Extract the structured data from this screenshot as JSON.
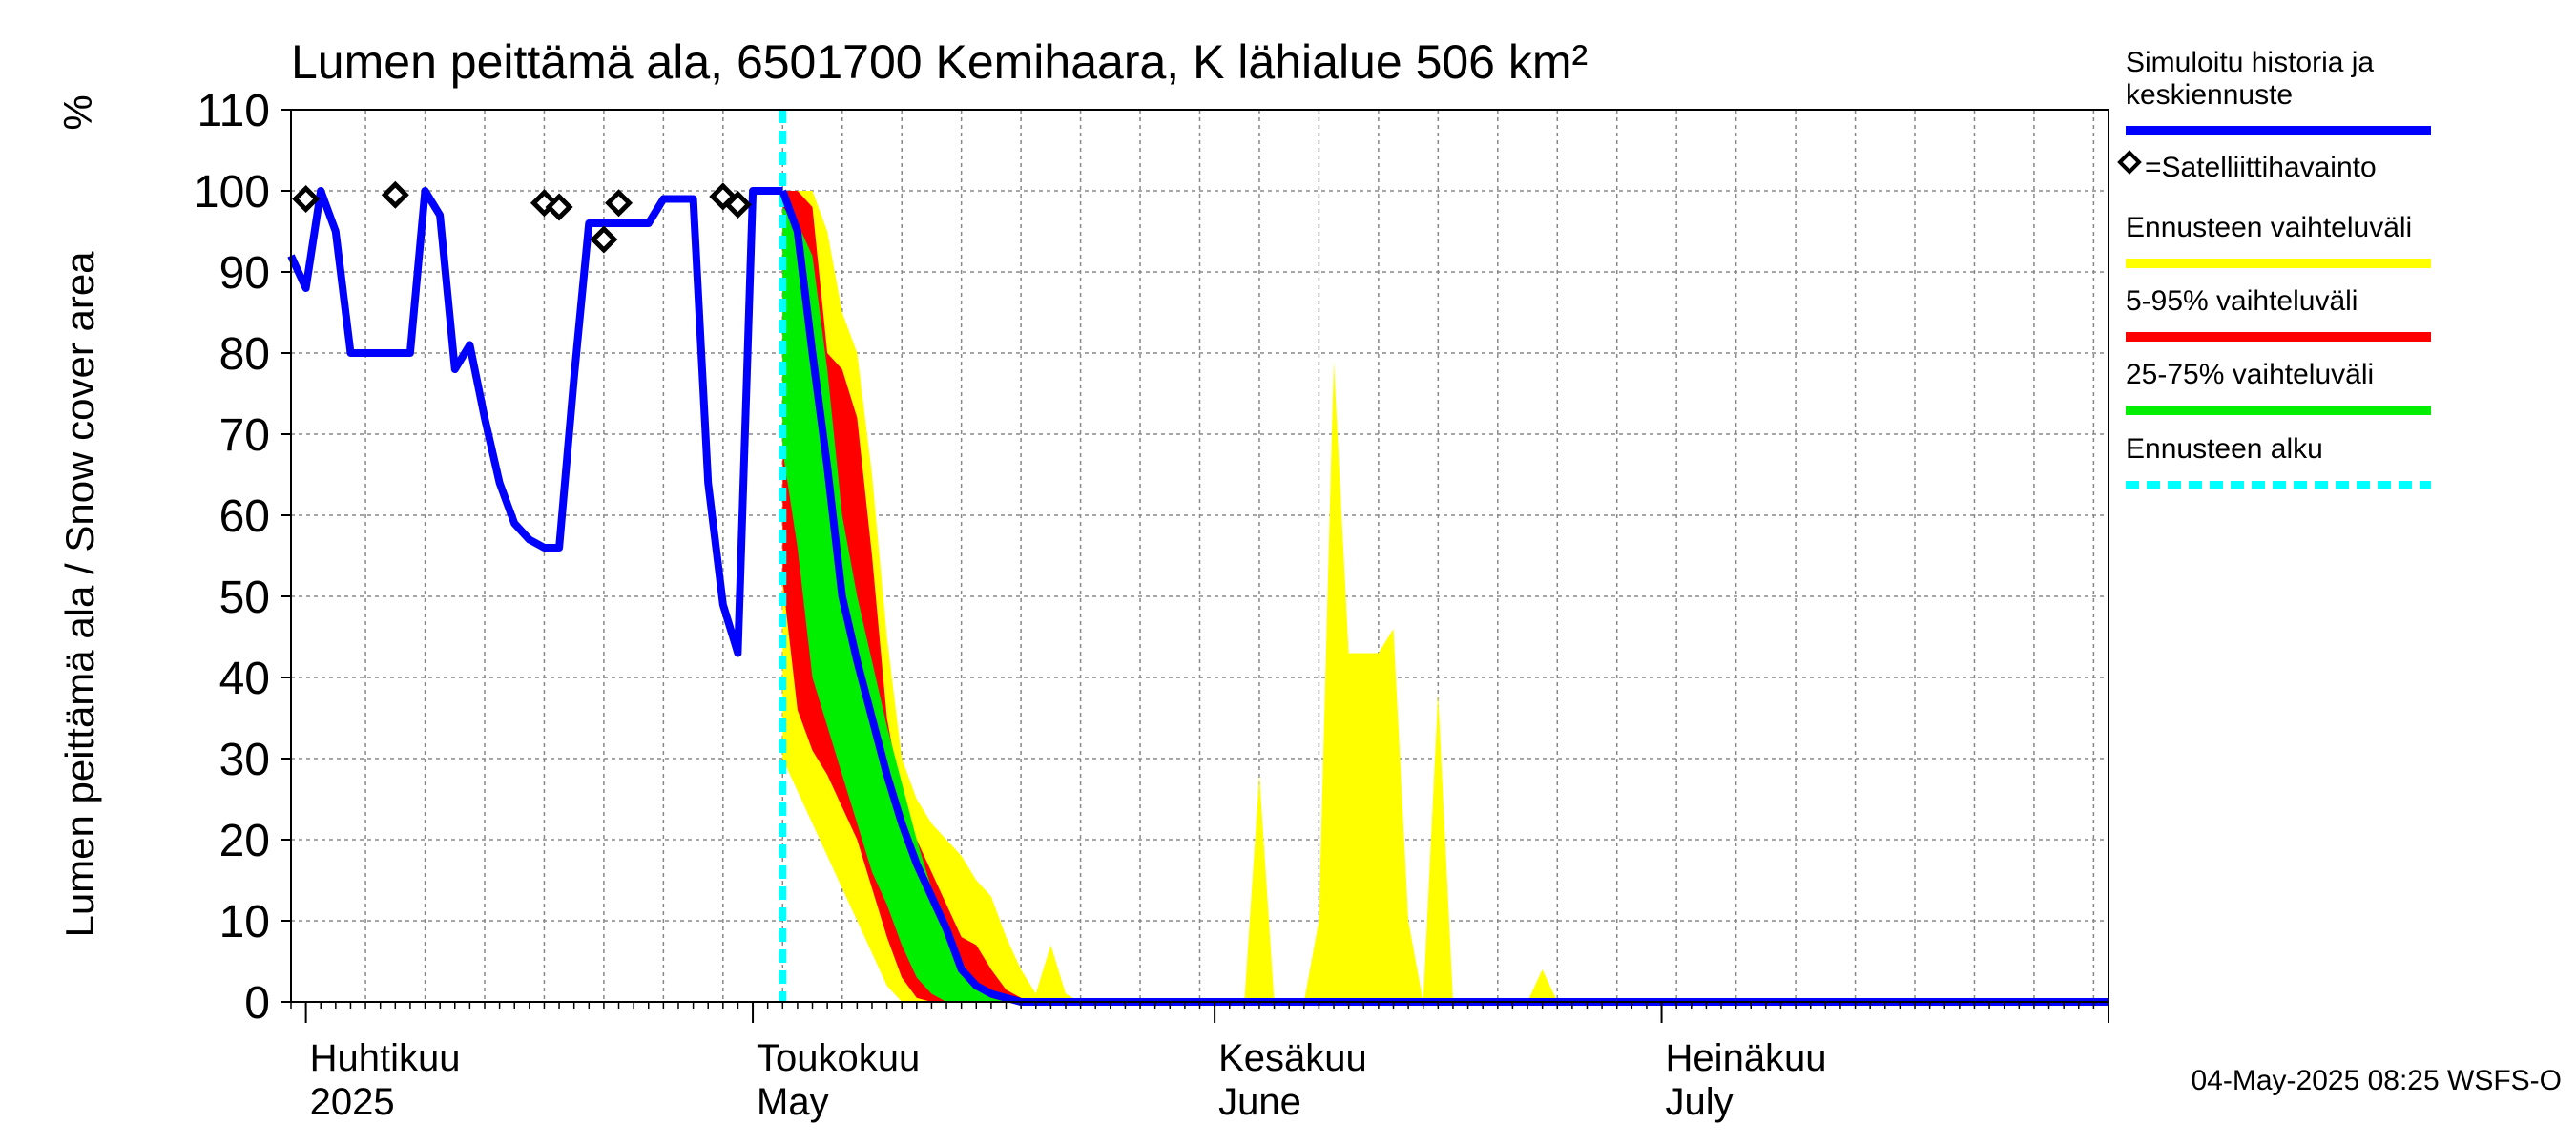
{
  "chart_data": {
    "type": "area",
    "title": "Lumen peittämä ala, 6501700 Kemihaara, K lähialue 506 km²",
    "ylabel": "Lumen peittämä ala / Snow cover area",
    "yunit": "%",
    "ylim": [
      0,
      110
    ],
    "yticks": [
      0,
      10,
      20,
      30,
      40,
      50,
      60,
      70,
      80,
      90,
      100,
      110
    ],
    "xlim": [
      "2025-03-31",
      "2025-07-31"
    ],
    "grid": true,
    "x_month_labels": [
      {
        "date": "2025-04-01",
        "fi": "Huhtikuu",
        "en": "2025"
      },
      {
        "date": "2025-05-01",
        "fi": "Toukokuu",
        "en": "May"
      },
      {
        "date": "2025-06-01",
        "fi": "Kesäkuu",
        "en": "June"
      },
      {
        "date": "2025-07-01",
        "fi": "Heinäkuu",
        "en": "July"
      }
    ],
    "legend": {
      "placement": "right",
      "entries": [
        {
          "id": "sim",
          "lines": [
            "Simuloitu historia ja",
            "keskiennuste"
          ],
          "color": "#0000ff",
          "style": "solid"
        },
        {
          "id": "sat",
          "lines": [
            "=Satelliittihavainto"
          ],
          "color": "#000000",
          "style": "diamond"
        },
        {
          "id": "full",
          "lines": [
            "Ennusteen vaihteluväli"
          ],
          "color": "#ffff00",
          "style": "solid"
        },
        {
          "id": "p595",
          "lines": [
            "5-95% vaihteluväli"
          ],
          "color": "#ff0000",
          "style": "solid"
        },
        {
          "id": "p2575",
          "lines": [
            "25-75% vaihteluväli"
          ],
          "color": "#00ee00",
          "style": "solid"
        },
        {
          "id": "start",
          "lines": [
            "Ennusteen alku"
          ],
          "color": "#00ffff",
          "style": "dashed"
        }
      ]
    },
    "forecast_start": "2025-05-03",
    "footer": "04-May-2025 08:25 WSFS-O",
    "series": {
      "simulated_history": [
        [
          "2025-03-31",
          92
        ],
        [
          "2025-04-01",
          88
        ],
        [
          "2025-04-02",
          100
        ],
        [
          "2025-04-03",
          95
        ],
        [
          "2025-04-04",
          80
        ],
        [
          "2025-04-05",
          80
        ],
        [
          "2025-04-06",
          80
        ],
        [
          "2025-04-07",
          80
        ],
        [
          "2025-04-08",
          80
        ],
        [
          "2025-04-09",
          100
        ],
        [
          "2025-04-10",
          97
        ],
        [
          "2025-04-11",
          78
        ],
        [
          "2025-04-12",
          81
        ],
        [
          "2025-04-13",
          72
        ],
        [
          "2025-04-14",
          64
        ],
        [
          "2025-04-15",
          59
        ],
        [
          "2025-04-16",
          57
        ],
        [
          "2025-04-17",
          56
        ],
        [
          "2025-04-18",
          56
        ],
        [
          "2025-04-19",
          77
        ],
        [
          "2025-04-20",
          96
        ],
        [
          "2025-04-21",
          96
        ],
        [
          "2025-04-22",
          96
        ],
        [
          "2025-04-23",
          96
        ],
        [
          "2025-04-24",
          96
        ],
        [
          "2025-04-25",
          99
        ],
        [
          "2025-04-26",
          99
        ],
        [
          "2025-04-27",
          99
        ],
        [
          "2025-04-28",
          64
        ],
        [
          "2025-04-29",
          49
        ],
        [
          "2025-04-30",
          43
        ],
        [
          "2025-05-01",
          100
        ],
        [
          "2025-05-02",
          100
        ],
        [
          "2025-05-03",
          100
        ]
      ],
      "median_forecast": [
        [
          "2025-05-03",
          100
        ],
        [
          "2025-05-04",
          95
        ],
        [
          "2025-05-05",
          80
        ],
        [
          "2025-05-06",
          66
        ],
        [
          "2025-05-07",
          50
        ],
        [
          "2025-05-08",
          42
        ],
        [
          "2025-05-09",
          35
        ],
        [
          "2025-05-10",
          28
        ],
        [
          "2025-05-11",
          22
        ],
        [
          "2025-05-12",
          17
        ],
        [
          "2025-05-13",
          13
        ],
        [
          "2025-05-14",
          9
        ],
        [
          "2025-05-15",
          4
        ],
        [
          "2025-05-16",
          2
        ],
        [
          "2025-05-17",
          1
        ],
        [
          "2025-05-18",
          0.5
        ],
        [
          "2025-05-19",
          0
        ],
        [
          "2025-07-31",
          0
        ]
      ],
      "satellite_observations": [
        [
          "2025-04-01",
          99
        ],
        [
          "2025-04-07",
          99.5
        ],
        [
          "2025-04-17",
          98.5
        ],
        [
          "2025-04-18",
          98
        ],
        [
          "2025-04-21",
          94
        ],
        [
          "2025-04-22",
          98.5
        ],
        [
          "2025-04-29",
          99.3
        ],
        [
          "2025-04-30",
          98.3
        ]
      ],
      "band_full": {
        "dates": [
          "2025-05-03",
          "2025-05-04",
          "2025-05-05",
          "2025-05-06",
          "2025-05-07",
          "2025-05-08",
          "2025-05-09",
          "2025-05-10",
          "2025-05-11",
          "2025-05-12",
          "2025-05-13",
          "2025-05-14",
          "2025-05-15",
          "2025-05-16",
          "2025-05-17",
          "2025-05-18",
          "2025-05-19",
          "2025-05-20",
          "2025-05-21",
          "2025-05-22",
          "2025-05-23",
          "2025-05-24",
          "2025-05-25",
          "2025-05-26"
        ],
        "upper": [
          100,
          100,
          100,
          95,
          85,
          80,
          65,
          45,
          30,
          25,
          22,
          20,
          18,
          15,
          13,
          8,
          4,
          1,
          7,
          1,
          0,
          0,
          0,
          0
        ],
        "lower": [
          30,
          26,
          22,
          18,
          14,
          10,
          6,
          2,
          0,
          0,
          0,
          0,
          0,
          0,
          0,
          0,
          0,
          0,
          0,
          0,
          0,
          0,
          0,
          0
        ]
      },
      "band_full_summer": {
        "dates": [
          "2025-06-03",
          "2025-06-04",
          "2025-06-05",
          "2025-06-06",
          "2025-06-07",
          "2025-06-08",
          "2025-06-09",
          "2025-06-10",
          "2025-06-11",
          "2025-06-12",
          "2025-06-13",
          "2025-06-14",
          "2025-06-15",
          "2025-06-16",
          "2025-06-17",
          "2025-06-18",
          "2025-06-19",
          "2025-06-20",
          "2025-06-21",
          "2025-06-22",
          "2025-06-23",
          "2025-06-24",
          "2025-06-25",
          "2025-06-26"
        ],
        "upper": [
          0,
          28,
          0,
          0,
          0,
          10,
          79,
          43,
          43,
          43,
          46,
          10,
          0,
          38,
          0,
          0,
          0,
          0,
          0,
          0,
          4,
          0,
          0,
          0
        ],
        "lower": [
          0,
          0,
          0,
          0,
          0,
          0,
          0,
          0,
          0,
          0,
          0,
          0,
          0,
          0,
          0,
          0,
          0,
          0,
          0,
          0,
          0,
          0,
          0,
          0
        ]
      },
      "band_5_95": {
        "dates": [
          "2025-05-03",
          "2025-05-04",
          "2025-05-05",
          "2025-05-06",
          "2025-05-07",
          "2025-05-08",
          "2025-05-09",
          "2025-05-10",
          "2025-05-11",
          "2025-05-12",
          "2025-05-13",
          "2025-05-14",
          "2025-05-15",
          "2025-05-16",
          "2025-05-17",
          "2025-05-18",
          "2025-05-19",
          "2025-05-20"
        ],
        "upper": [
          100,
          100,
          98,
          80,
          78,
          72,
          55,
          35,
          25,
          20,
          16,
          12,
          8,
          7,
          4,
          1.5,
          0.5,
          0
        ],
        "lower": [
          52,
          36,
          31,
          28,
          24,
          20,
          14,
          8,
          3,
          0.5,
          0,
          0,
          0,
          0,
          0,
          0,
          0,
          0
        ]
      },
      "band_25_75": {
        "dates": [
          "2025-05-03",
          "2025-05-04",
          "2025-05-05",
          "2025-05-06",
          "2025-05-07",
          "2025-05-08",
          "2025-05-09",
          "2025-05-10",
          "2025-05-11",
          "2025-05-12",
          "2025-05-13",
          "2025-05-14",
          "2025-05-15",
          "2025-05-16",
          "2025-05-17",
          "2025-05-18"
        ],
        "upper": [
          98,
          96,
          92,
          78,
          60,
          50,
          42,
          34,
          27,
          20,
          14,
          9,
          5,
          2,
          0.5,
          0
        ],
        "lower": [
          68,
          56,
          40,
          34,
          28,
          22,
          16,
          12,
          7,
          3,
          1,
          0,
          0,
          0,
          0,
          0
        ]
      }
    }
  }
}
